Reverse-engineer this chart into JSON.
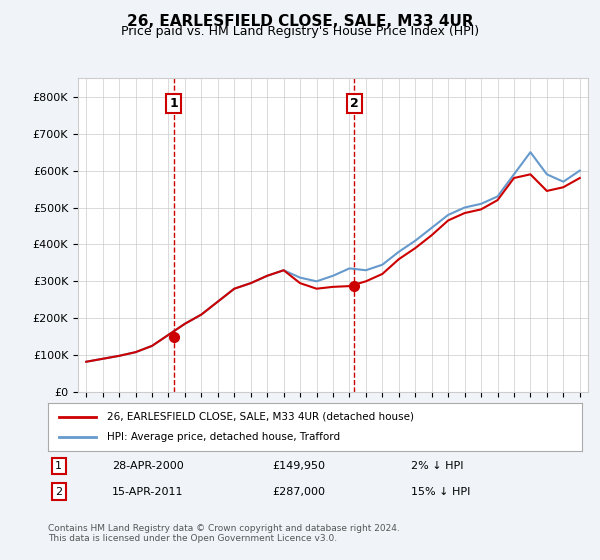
{
  "title": "26, EARLESFIELD CLOSE, SALE, M33 4UR",
  "subtitle": "Price paid vs. HM Land Registry's House Price Index (HPI)",
  "hpi_label": "HPI: Average price, detached house, Trafford",
  "price_label": "26, EARLESFIELD CLOSE, SALE, M33 4UR (detached house)",
  "footer": "Contains HM Land Registry data © Crown copyright and database right 2024.\nThis data is licensed under the Open Government Licence v3.0.",
  "transaction1": {
    "num": 1,
    "date": "28-APR-2000",
    "price": "£149,950",
    "note": "2% ↓ HPI"
  },
  "transaction2": {
    "num": 2,
    "date": "15-APR-2011",
    "price": "£287,000",
    "note": "15% ↓ HPI"
  },
  "vline1_x": 2000.32,
  "vline2_x": 2011.29,
  "ylim": [
    0,
    850000
  ],
  "yticks": [
    0,
    100000,
    200000,
    300000,
    400000,
    500000,
    600000,
    700000,
    800000
  ],
  "ytick_labels": [
    "£0",
    "£100K",
    "£200K",
    "£300K",
    "£400K",
    "£500K",
    "£600K",
    "£700K",
    "£800K"
  ],
  "price_color": "#cc0000",
  "hpi_color": "#6699cc",
  "vline_color": "#cc0000",
  "background_color": "#f0f4f8",
  "plot_bg_color": "#ffffff",
  "hpi_x": [
    1995,
    1996,
    1997,
    1998,
    1999,
    2000,
    2001,
    2002,
    2003,
    2004,
    2005,
    2006,
    2007,
    2008,
    2009,
    2010,
    2011,
    2012,
    2013,
    2014,
    2015,
    2016,
    2017,
    2018,
    2019,
    2020,
    2021,
    2022,
    2023,
    2024,
    2025
  ],
  "hpi_y": [
    82000,
    90000,
    98000,
    108000,
    125000,
    155000,
    185000,
    210000,
    245000,
    280000,
    295000,
    315000,
    330000,
    310000,
    300000,
    315000,
    335000,
    330000,
    345000,
    380000,
    410000,
    445000,
    480000,
    500000,
    510000,
    530000,
    590000,
    650000,
    590000,
    570000,
    600000
  ],
  "price_x": [
    1995,
    1996,
    1997,
    1998,
    1999,
    2000,
    2001,
    2002,
    2003,
    2004,
    2005,
    2006,
    2007,
    2008,
    2009,
    2010,
    2011,
    2012,
    2013,
    2014,
    2015,
    2016,
    2017,
    2018,
    2019,
    2020,
    2021,
    2022,
    2023,
    2024,
    2025
  ],
  "price_y": [
    82000,
    90000,
    98000,
    108000,
    125000,
    155000,
    185000,
    210000,
    245000,
    280000,
    295000,
    315000,
    330000,
    295000,
    280000,
    285000,
    287000,
    300000,
    320000,
    360000,
    390000,
    425000,
    465000,
    485000,
    495000,
    520000,
    580000,
    590000,
    545000,
    555000,
    580000
  ],
  "marker1_x": 2000.32,
  "marker1_y": 149950,
  "marker2_x": 2011.29,
  "marker2_y": 287000,
  "xlim": [
    1994.5,
    2025.5
  ],
  "xticks": [
    1995,
    1996,
    1997,
    1998,
    1999,
    2000,
    2001,
    2002,
    2003,
    2004,
    2005,
    2006,
    2007,
    2008,
    2009,
    2010,
    2011,
    2012,
    2013,
    2014,
    2015,
    2016,
    2017,
    2018,
    2019,
    2020,
    2021,
    2022,
    2023,
    2024,
    2025
  ]
}
